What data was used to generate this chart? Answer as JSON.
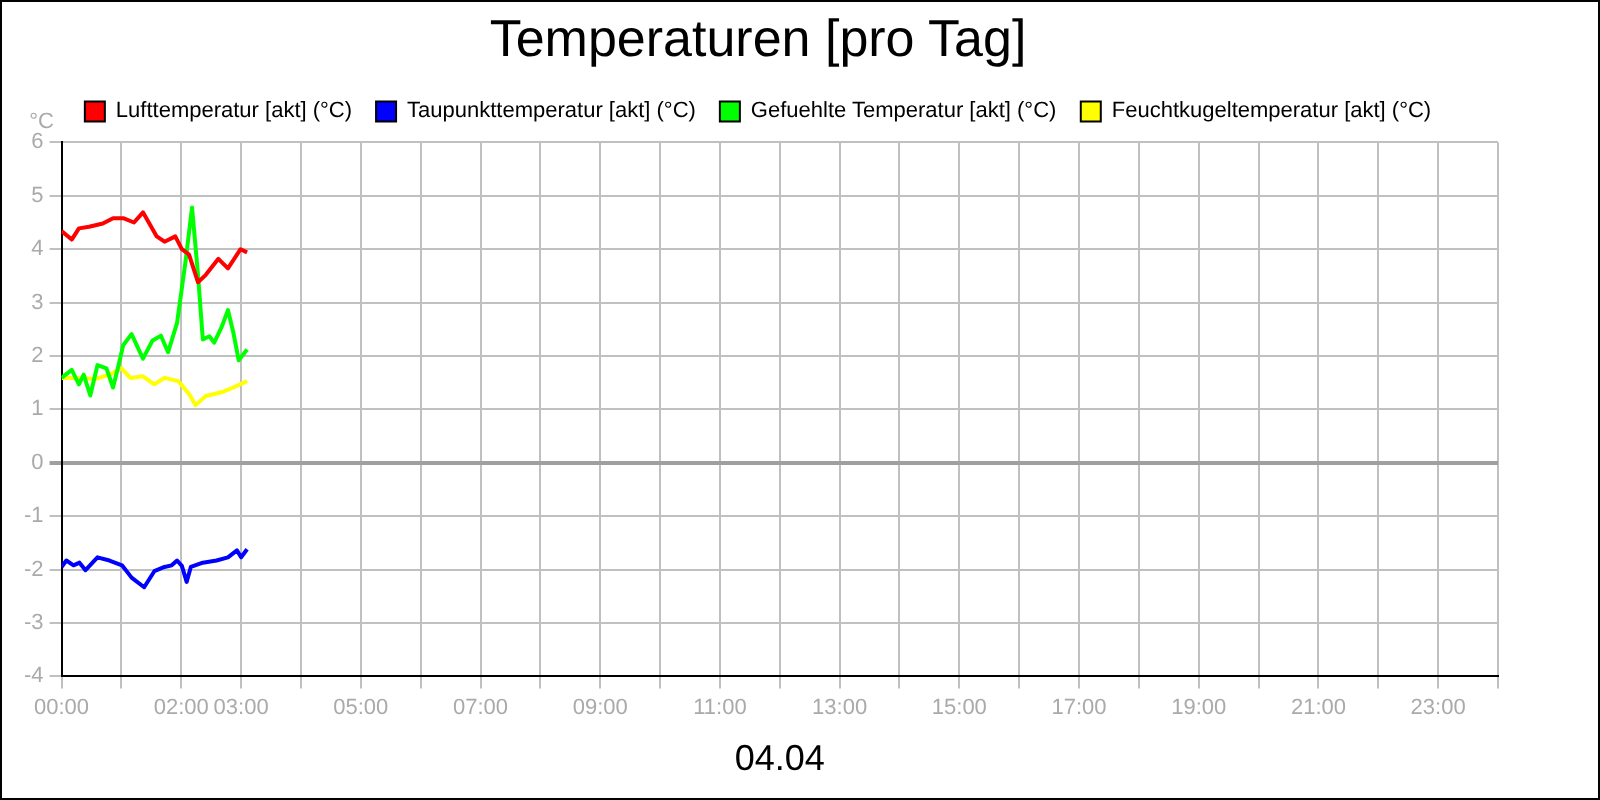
{
  "chart_data": {
    "type": "line",
    "title": "Temperaturen [pro Tag]",
    "ylabel": "°C",
    "xlabel": "04.04",
    "legend": "top",
    "grid": true,
    "marker": "none",
    "line_style": "solid",
    "xlim": [
      0,
      24
    ],
    "ylim": [
      -4,
      6
    ],
    "xticks": [
      {
        "value": 0,
        "label": "00:00"
      },
      {
        "value": 1,
        "label": null
      },
      {
        "value": 2,
        "label": "02:00"
      },
      {
        "value": 3,
        "label": "03:00"
      },
      {
        "value": 4,
        "label": null
      },
      {
        "value": 5,
        "label": "05:00"
      },
      {
        "value": 6,
        "label": null
      },
      {
        "value": 7,
        "label": "07:00"
      },
      {
        "value": 8,
        "label": null
      },
      {
        "value": 9,
        "label": "09:00"
      },
      {
        "value": 10,
        "label": null
      },
      {
        "value": 11,
        "label": "11:00"
      },
      {
        "value": 12,
        "label": null
      },
      {
        "value": 13,
        "label": "13:00"
      },
      {
        "value": 14,
        "label": null
      },
      {
        "value": 15,
        "label": "15:00"
      },
      {
        "value": 16,
        "label": null
      },
      {
        "value": 17,
        "label": "17:00"
      },
      {
        "value": 18,
        "label": null
      },
      {
        "value": 19,
        "label": "19:00"
      },
      {
        "value": 20,
        "label": null
      },
      {
        "value": 21,
        "label": "21:00"
      },
      {
        "value": 22,
        "label": null
      },
      {
        "value": 23,
        "label": "23:00"
      },
      {
        "value": 24,
        "label": null
      }
    ],
    "yticks": [
      -4,
      -3,
      -2,
      -1,
      0,
      1,
      2,
      3,
      4,
      5,
      6
    ],
    "series": [
      {
        "name": "Lufttemperatur [akt] (°C)",
        "color": "#ff0000",
        "x": [
          0,
          0.17,
          0.29,
          0.46,
          0.69,
          0.86,
          1.03,
          1.21,
          1.36,
          1.59,
          1.72,
          1.9,
          2.01,
          2.13,
          2.28,
          2.41,
          2.62,
          2.78,
          2.99,
          3.1
        ],
        "values": [
          4.34,
          4.18,
          4.39,
          4.42,
          4.48,
          4.58,
          4.58,
          4.5,
          4.69,
          4.24,
          4.14,
          4.24,
          4.0,
          3.9,
          3.38,
          3.52,
          3.82,
          3.64,
          4.0,
          3.94
        ]
      },
      {
        "name": "Taupunkttemperatur [akt] (°C)",
        "color": "#0000ff",
        "x": [
          0,
          0.08,
          0.2,
          0.3,
          0.4,
          0.6,
          0.8,
          1.01,
          1.17,
          1.38,
          1.55,
          1.72,
          1.84,
          1.93,
          2.01,
          2.09,
          2.16,
          2.36,
          2.59,
          2.78,
          2.93,
          3.0,
          3.1
        ],
        "values": [
          -1.95,
          -1.83,
          -1.92,
          -1.87,
          -2.01,
          -1.77,
          -1.83,
          -1.92,
          -2.15,
          -2.33,
          -2.03,
          -1.95,
          -1.92,
          -1.83,
          -1.93,
          -2.23,
          -1.95,
          -1.87,
          -1.83,
          -1.77,
          -1.64,
          -1.77,
          -1.62
        ]
      },
      {
        "name": "Gefuehlte Temperatur [akt] (°C)",
        "color": "#00ff00",
        "x": [
          0,
          0.17,
          0.29,
          0.37,
          0.48,
          0.6,
          0.75,
          0.86,
          0.94,
          1.03,
          1.17,
          1.36,
          1.52,
          1.66,
          1.78,
          1.93,
          2.07,
          2.18,
          2.28,
          2.36,
          2.47,
          2.55,
          2.67,
          2.78,
          2.87,
          2.96,
          3.1
        ],
        "values": [
          1.59,
          1.74,
          1.47,
          1.65,
          1.26,
          1.83,
          1.77,
          1.41,
          1.77,
          2.2,
          2.41,
          1.95,
          2.29,
          2.38,
          2.07,
          2.62,
          3.76,
          4.78,
          3.52,
          2.31,
          2.37,
          2.25,
          2.53,
          2.86,
          2.44,
          1.92,
          2.12
        ]
      },
      {
        "name": "Feuchtkugeltemperatur [akt] (°C)",
        "color": "#ffff00",
        "x": [
          0,
          0.29,
          0.57,
          0.8,
          1.0,
          1.15,
          1.36,
          1.55,
          1.72,
          1.95,
          2.13,
          2.24,
          2.41,
          2.67,
          2.87,
          3.1
        ],
        "values": [
          1.59,
          1.59,
          1.57,
          1.65,
          1.77,
          1.59,
          1.62,
          1.47,
          1.59,
          1.53,
          1.29,
          1.08,
          1.25,
          1.32,
          1.41,
          1.53
        ]
      }
    ]
  }
}
